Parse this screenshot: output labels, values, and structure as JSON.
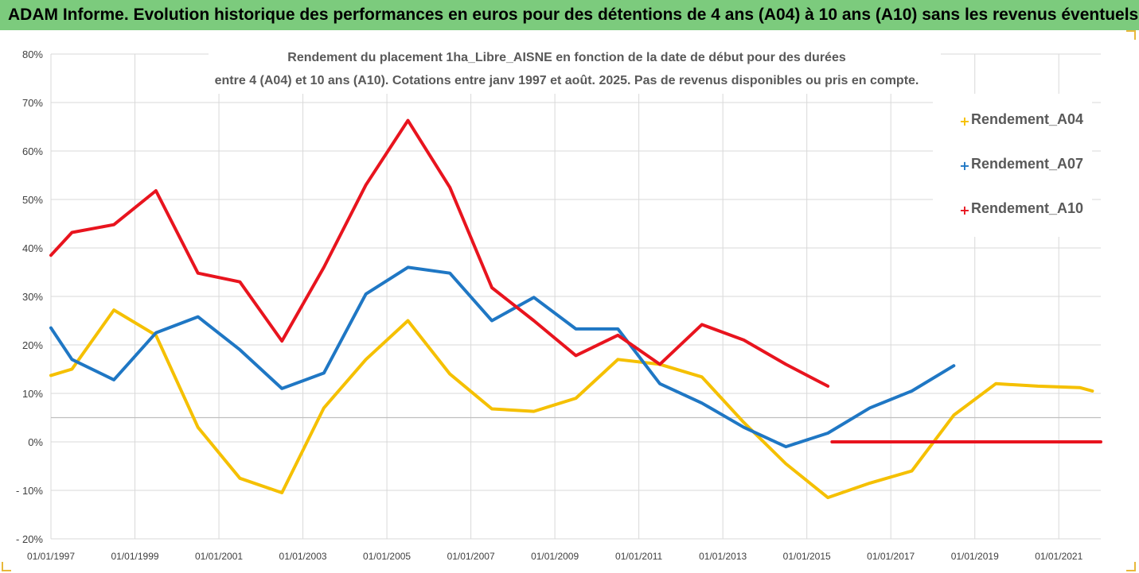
{
  "banner": {
    "title": "ADAM Informe. Evolution historique des performances en euros pour des détentions de 4 ans (A04) à 10 ans (A10) sans les revenus éventuels",
    "color": "#7ccb7d"
  },
  "chart_data": {
    "type": "line",
    "title_line1": "Rendement du placement 1ha_Libre_AISNE en fonction de la date de début pour des durées",
    "title_line2": "entre 4 (A04) et 10 ans (A10). Cotations entre janv 1997 et août. 2025. Pas de revenus disponibles ou pris en compte.",
    "x_unit": "year",
    "xlim": [
      1997.0,
      2022.0
    ],
    "ylim": [
      -20,
      80
    ],
    "y_ticks": [
      -20,
      -10,
      0,
      10,
      20,
      30,
      40,
      50,
      60,
      70,
      80
    ],
    "y_tick_labels": [
      "- 20%",
      "- 10%",
      "0%",
      "10%",
      "20%",
      "30%",
      "40%",
      "50%",
      "60%",
      "70%",
      "80%"
    ],
    "x_tick_labels": [
      "01/01/1997",
      "01/01/1999",
      "01/01/2001",
      "01/01/2003",
      "01/01/2005",
      "01/01/2007",
      "01/01/2009",
      "01/01/2011",
      "01/01/2013",
      "01/01/2015",
      "01/01/2017",
      "01/01/2019",
      "01/01/2021"
    ],
    "x_tick_values": [
      1997,
      1999,
      2001,
      2003,
      2005,
      2007,
      2009,
      2011,
      2013,
      2015,
      2017,
      2019,
      2021
    ],
    "grid": true,
    "legend_position": "right",
    "series": [
      {
        "name": "Rendement_A04",
        "color": "#f5c000",
        "points": [
          [
            1997.0,
            13.7
          ],
          [
            1997.5,
            15.0
          ],
          [
            1998.5,
            27.2
          ],
          [
            1999.5,
            22.0
          ],
          [
            2000.5,
            3.0
          ],
          [
            2001.5,
            -7.5
          ],
          [
            2002.5,
            -10.5
          ],
          [
            2003.5,
            7.0
          ],
          [
            2004.5,
            17.0
          ],
          [
            2005.5,
            25.0
          ],
          [
            2006.5,
            14.0
          ],
          [
            2007.5,
            6.8
          ],
          [
            2008.5,
            6.3
          ],
          [
            2009.5,
            9.0
          ],
          [
            2010.5,
            17.0
          ],
          [
            2011.5,
            16.0
          ],
          [
            2012.5,
            13.4
          ],
          [
            2013.5,
            4.0
          ],
          [
            2014.5,
            -4.5
          ],
          [
            2015.5,
            -11.5
          ],
          [
            2016.5,
            -8.5
          ],
          [
            2017.5,
            -6.0
          ],
          [
            2018.5,
            5.5
          ],
          [
            2019.5,
            12.0
          ],
          [
            2020.5,
            11.5
          ],
          [
            2021.5,
            11.2
          ],
          [
            2021.8,
            10.5
          ]
        ]
      },
      {
        "name": "Rendement_A07",
        "color": "#1f77c4",
        "points": [
          [
            1997.0,
            23.5
          ],
          [
            1997.5,
            17.0
          ],
          [
            1998.5,
            12.8
          ],
          [
            1999.5,
            22.5
          ],
          [
            2000.5,
            25.8
          ],
          [
            2001.5,
            19.0
          ],
          [
            2002.5,
            11.0
          ],
          [
            2003.5,
            14.2
          ],
          [
            2004.5,
            30.5
          ],
          [
            2005.5,
            36.0
          ],
          [
            2006.5,
            34.8
          ],
          [
            2007.5,
            25.0
          ],
          [
            2008.5,
            29.8
          ],
          [
            2009.5,
            23.3
          ],
          [
            2010.5,
            23.3
          ],
          [
            2011.5,
            12.0
          ],
          [
            2012.5,
            8.0
          ],
          [
            2013.5,
            3.0
          ],
          [
            2014.5,
            -1.0
          ],
          [
            2015.5,
            1.8
          ],
          [
            2016.5,
            7.0
          ],
          [
            2017.5,
            10.5
          ],
          [
            2018.5,
            15.7
          ]
        ]
      },
      {
        "name": "Rendement_A10",
        "color": "#e8141e",
        "points": [
          [
            1997.0,
            38.5
          ],
          [
            1997.5,
            43.2
          ],
          [
            1998.5,
            44.8
          ],
          [
            1999.5,
            51.8
          ],
          [
            2000.5,
            34.8
          ],
          [
            2001.5,
            33.0
          ],
          [
            2002.5,
            20.8
          ],
          [
            2003.5,
            36.0
          ],
          [
            2004.5,
            53.0
          ],
          [
            2005.5,
            66.3
          ],
          [
            2006.5,
            52.5
          ],
          [
            2007.5,
            31.8
          ],
          [
            2008.5,
            25.0
          ],
          [
            2009.5,
            17.8
          ],
          [
            2010.5,
            22.0
          ],
          [
            2011.5,
            16.0
          ],
          [
            2012.5,
            24.2
          ],
          [
            2013.5,
            21.0
          ],
          [
            2014.5,
            16.0
          ],
          [
            2015.5,
            11.5
          ]
        ]
      },
      {
        "name": "Rendement_A10",
        "color": "#e8141e",
        "points": [
          [
            2015.6,
            0.0
          ],
          [
            2022.0,
            0.0
          ]
        ]
      }
    ]
  }
}
